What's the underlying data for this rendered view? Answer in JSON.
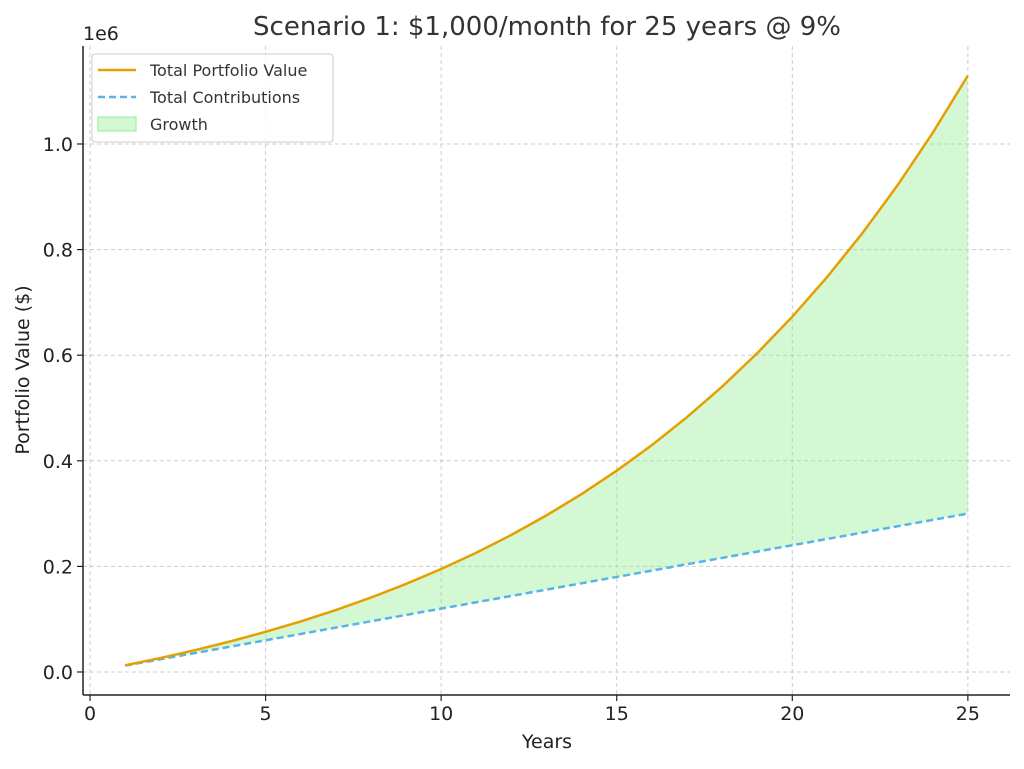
{
  "chart_data": {
    "type": "line",
    "title": "Scenario 1: $1,000/month for 25 years @ 9%",
    "xlabel": "Years",
    "ylabel": "Portfolio Value ($)",
    "y_offset_label": "1e6",
    "xlim": [
      -0.2,
      26.2
    ],
    "ylim": [
      -43600,
      1185600
    ],
    "xticks": [
      0,
      5,
      10,
      15,
      20,
      25
    ],
    "xtick_labels": [
      "0",
      "5",
      "10",
      "15",
      "20",
      "25"
    ],
    "yticks": [
      0,
      200000,
      400000,
      600000,
      800000,
      1000000
    ],
    "ytick_labels": [
      "0.0",
      "0.2",
      "0.4",
      "0.6",
      "0.8",
      "1.0"
    ],
    "grid": true,
    "legend_placement": "upper-left",
    "x": [
      1,
      2,
      3,
      4,
      5,
      6,
      7,
      8,
      9,
      10,
      11,
      12,
      13,
      14,
      15,
      16,
      17,
      18,
      19,
      20,
      21,
      22,
      23,
      24,
      25
    ],
    "series": [
      {
        "name": "Total Portfolio Value",
        "color": "#E69F00",
        "style": "solid",
        "values": [
          12601,
          26385,
          41461,
          57952,
          75988,
          95718,
          117298,
          140904,
          166723,
          194964,
          225853,
          259642,
          296599,
          337026,
          381244,
          429610,
          482511,
          540376,
          603669,
          672899,
          748624,
          831450,
          922046,
          1021147,
          1129546
        ]
      },
      {
        "name": "Total Contributions",
        "color": "#56B4E9",
        "style": "dashed",
        "values": [
          12000,
          24000,
          36000,
          48000,
          60000,
          72000,
          84000,
          96000,
          108000,
          120000,
          132000,
          144000,
          156000,
          168000,
          180000,
          192000,
          204000,
          216000,
          228000,
          240000,
          252000,
          264000,
          276000,
          288000,
          300000
        ]
      }
    ],
    "fill": {
      "name": "Growth",
      "color": "#90EE90",
      "between": [
        "Total Contributions",
        "Total Portfolio Value"
      ]
    }
  }
}
